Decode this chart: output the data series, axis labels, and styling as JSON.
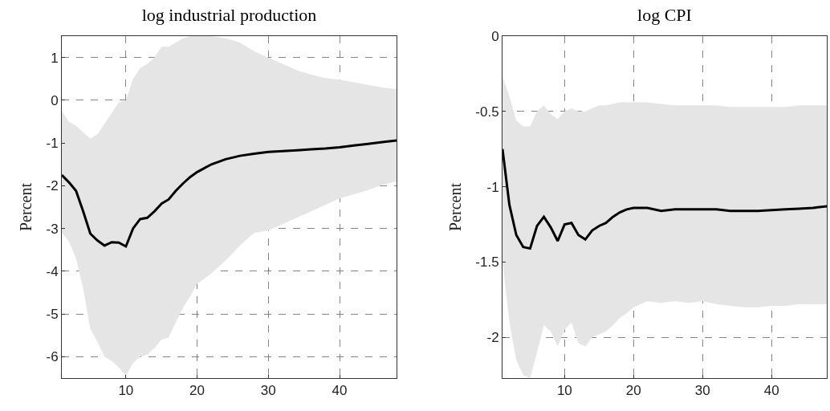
{
  "chart_data": [
    {
      "type": "line",
      "title": "log industrial production",
      "ylabel": "Percent",
      "xlim": [
        1,
        48
      ],
      "xticks": [
        10,
        20,
        30,
        40
      ],
      "ylim": [
        -6.5,
        1.5
      ],
      "yticks": [
        -6,
        -5,
        -4,
        -3,
        -2,
        -1,
        0,
        1
      ],
      "grid": true,
      "line_style": "solid",
      "marker": "none",
      "x": [
        1,
        2,
        3,
        4,
        5,
        6,
        7,
        8,
        9,
        10,
        11,
        12,
        13,
        14,
        15,
        16,
        17,
        18,
        19,
        20,
        22,
        24,
        26,
        28,
        30,
        32,
        34,
        36,
        38,
        40,
        42,
        44,
        46,
        48
      ],
      "series": [
        {
          "color": "#000000",
          "values": [
            -1.75,
            -1.92,
            -2.12,
            -2.6,
            -3.12,
            -3.28,
            -3.4,
            -3.32,
            -3.33,
            -3.42,
            -3.0,
            -2.78,
            -2.75,
            -2.6,
            -2.42,
            -2.32,
            -2.12,
            -1.95,
            -1.8,
            -1.68,
            -1.5,
            -1.38,
            -1.3,
            -1.25,
            -1.21,
            -1.19,
            -1.17,
            -1.15,
            -1.13,
            -1.1,
            -1.06,
            -1.02,
            -0.98,
            -0.94
          ],
          "upper": [
            -0.25,
            -0.5,
            -0.6,
            -0.75,
            -0.9,
            -0.8,
            -0.55,
            -0.3,
            -0.05,
            0.0,
            0.5,
            0.75,
            0.85,
            1.0,
            1.25,
            1.25,
            1.35,
            1.45,
            1.5,
            1.5,
            1.5,
            1.45,
            1.35,
            1.15,
            1.0,
            0.85,
            0.7,
            0.6,
            0.52,
            0.48,
            0.42,
            0.36,
            0.3,
            0.26
          ],
          "lower": [
            -3.1,
            -3.3,
            -3.7,
            -4.4,
            -5.35,
            -5.65,
            -6.0,
            -6.1,
            -6.25,
            -6.45,
            -6.15,
            -6.0,
            -5.95,
            -5.8,
            -5.6,
            -5.55,
            -5.2,
            -4.85,
            -4.6,
            -4.3,
            -4.05,
            -3.75,
            -3.4,
            -3.1,
            -3.05,
            -2.9,
            -2.75,
            -2.6,
            -2.45,
            -2.3,
            -2.2,
            -2.1,
            -1.98,
            -1.9
          ]
        }
      ]
    },
    {
      "type": "line",
      "title": "log CPI",
      "ylabel": "Percent",
      "xlim": [
        1,
        48
      ],
      "xticks": [
        10,
        20,
        30,
        40
      ],
      "ylim": [
        -2.27,
        0
      ],
      "yticks": [
        -2,
        -1.5,
        -1,
        -0.5,
        0
      ],
      "grid": true,
      "line_style": "solid",
      "marker": "none",
      "x": [
        1,
        2,
        3,
        4,
        5,
        6,
        7,
        8,
        9,
        10,
        11,
        12,
        13,
        14,
        15,
        16,
        17,
        18,
        19,
        20,
        22,
        24,
        26,
        28,
        30,
        32,
        34,
        36,
        38,
        40,
        42,
        44,
        46,
        48
      ],
      "series": [
        {
          "color": "#000000",
          "values": [
            -0.75,
            -1.12,
            -1.32,
            -1.4,
            -1.41,
            -1.26,
            -1.2,
            -1.27,
            -1.36,
            -1.25,
            -1.24,
            -1.32,
            -1.35,
            -1.29,
            -1.26,
            -1.24,
            -1.2,
            -1.17,
            -1.15,
            -1.14,
            -1.14,
            -1.16,
            -1.15,
            -1.15,
            -1.15,
            -1.15,
            -1.16,
            -1.16,
            -1.16,
            -1.155,
            -1.15,
            -1.145,
            -1.14,
            -1.13
          ],
          "upper": [
            -0.27,
            -0.4,
            -0.56,
            -0.6,
            -0.6,
            -0.5,
            -0.46,
            -0.52,
            -0.55,
            -0.5,
            -0.48,
            -0.5,
            -0.5,
            -0.48,
            -0.46,
            -0.46,
            -0.45,
            -0.44,
            -0.44,
            -0.44,
            -0.44,
            -0.45,
            -0.46,
            -0.46,
            -0.46,
            -0.46,
            -0.47,
            -0.47,
            -0.47,
            -0.47,
            -0.47,
            -0.46,
            -0.46,
            -0.46
          ],
          "lower": [
            -1.5,
            -1.9,
            -2.15,
            -2.25,
            -2.27,
            -2.1,
            -1.92,
            -1.96,
            -2.06,
            -1.95,
            -1.9,
            -2.04,
            -2.06,
            -2.0,
            -1.98,
            -1.96,
            -1.92,
            -1.87,
            -1.84,
            -1.8,
            -1.76,
            -1.77,
            -1.76,
            -1.77,
            -1.76,
            -1.78,
            -1.79,
            -1.8,
            -1.8,
            -1.79,
            -1.79,
            -1.78,
            -1.78,
            -1.78
          ]
        }
      ]
    }
  ]
}
